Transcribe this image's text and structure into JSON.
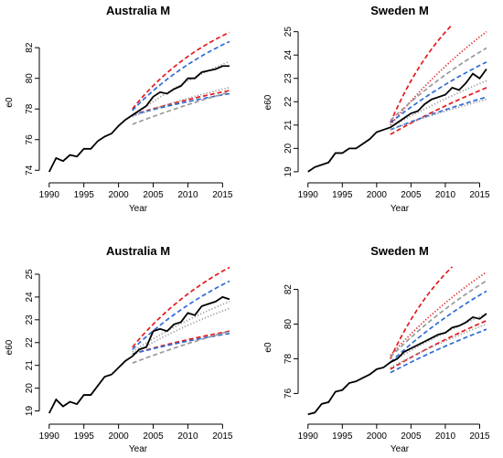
{
  "chart_data": [
    {
      "type": "line",
      "title": "Australia M",
      "xlabel": "Year",
      "ylabel": "e0",
      "xlim": [
        1989.5,
        2016.8
      ],
      "ylim": [
        73.6,
        83.5
      ],
      "xticks": [
        1990,
        1995,
        2000,
        2005,
        2010,
        2015
      ],
      "yticks": [
        74,
        76,
        78,
        80,
        82
      ],
      "observed": {
        "x": [
          1990,
          1991,
          1992,
          1993,
          1994,
          1995,
          1996,
          1997,
          1998,
          1999,
          2000,
          2001,
          2002,
          2003,
          2004,
          2005,
          2006,
          2007,
          2008,
          2009,
          2010,
          2011,
          2012,
          2013,
          2014,
          2015,
          2016
        ],
        "y": [
          73.9,
          74.8,
          74.6,
          75.0,
          74.9,
          75.4,
          75.4,
          75.9,
          76.2,
          76.4,
          76.9,
          77.3,
          77.6,
          77.9,
          78.2,
          78.8,
          79.1,
          79.0,
          79.3,
          79.5,
          80.0,
          80.0,
          80.4,
          80.5,
          80.6,
          80.8,
          80.8
        ]
      },
      "forecasts": [
        {
          "color": "#e41a1c",
          "style": "dashed",
          "x": [
            2002,
            2016
          ],
          "y": [
            78.0,
            83.0
          ],
          "curve": 0.6
        },
        {
          "color": "#e41a1c",
          "style": "dashed",
          "x": [
            2002,
            2016
          ],
          "y": [
            77.6,
            79.2
          ],
          "curve": 0.3
        },
        {
          "color": "#2e6bd6",
          "style": "dashed",
          "x": [
            2002,
            2016
          ],
          "y": [
            77.9,
            82.4
          ],
          "curve": 0.5
        },
        {
          "color": "#2e6bd6",
          "style": "dashed",
          "x": [
            2002,
            2016
          ],
          "y": [
            77.6,
            79.0
          ],
          "curve": 0.3
        },
        {
          "color": "#999999",
          "style": "dashed",
          "x": [
            2002,
            2016
          ],
          "y": [
            77.0,
            79.1
          ],
          "curve": 0.2
        },
        {
          "color": "#999999",
          "style": "dotted",
          "x": [
            2002,
            2016
          ],
          "y": [
            77.5,
            81.1
          ],
          "curve": 0.4
        },
        {
          "color": "#999999",
          "style": "dotted",
          "x": [
            2002,
            2016
          ],
          "y": [
            77.5,
            79.4
          ],
          "curve": 0.3
        }
      ]
    },
    {
      "type": "line",
      "title": "Sweden M",
      "xlabel": "Year",
      "ylabel": "e60",
      "xlim": [
        1989.5,
        2016.8
      ],
      "ylim": [
        18.8,
        25.3
      ],
      "xticks": [
        1990,
        1995,
        2000,
        2005,
        2010,
        2015
      ],
      "yticks": [
        19,
        20,
        21,
        22,
        23,
        24,
        25
      ],
      "observed": {
        "x": [
          1990,
          1991,
          1992,
          1993,
          1994,
          1995,
          1996,
          1997,
          1998,
          1999,
          2000,
          2001,
          2002,
          2003,
          2004,
          2005,
          2006,
          2007,
          2008,
          2009,
          2010,
          2011,
          2012,
          2013,
          2014,
          2015,
          2016
        ],
        "y": [
          19.0,
          19.2,
          19.3,
          19.4,
          19.8,
          19.8,
          20.0,
          20.0,
          20.2,
          20.4,
          20.7,
          20.8,
          20.9,
          21.1,
          21.3,
          21.5,
          21.6,
          21.9,
          22.1,
          22.2,
          22.3,
          22.6,
          22.5,
          22.8,
          23.2,
          23.0,
          23.4
        ]
      },
      "forecasts": [
        {
          "color": "#e41a1c",
          "style": "dashed",
          "x": [
            2002,
            2011
          ],
          "y": [
            21.1,
            25.3
          ],
          "curve": 0.5
        },
        {
          "color": "#e41a1c",
          "style": "dashed",
          "x": [
            2002,
            2016
          ],
          "y": [
            20.6,
            22.6
          ],
          "curve": 0.2
        },
        {
          "color": "#e41a1c",
          "style": "dotted",
          "x": [
            2002,
            2016
          ],
          "y": [
            21.0,
            25.0
          ],
          "curve": 0.3
        },
        {
          "color": "#2e6bd6",
          "style": "dashed",
          "x": [
            2002,
            2016
          ],
          "y": [
            21.1,
            23.7
          ],
          "curve": 0.3
        },
        {
          "color": "#2e6bd6",
          "style": "dashed",
          "x": [
            2002,
            2016
          ],
          "y": [
            20.8,
            22.2
          ],
          "curve": 0.2
        },
        {
          "color": "#999999",
          "style": "dashed",
          "x": [
            2002,
            2016
          ],
          "y": [
            21.2,
            24.3
          ],
          "curve": 0.3
        },
        {
          "color": "#999999",
          "style": "dotted",
          "x": [
            2002,
            2016
          ],
          "y": [
            20.9,
            22.9
          ],
          "curve": 0.2
        },
        {
          "color": "#999999",
          "style": "dotted",
          "x": [
            2002,
            2016
          ],
          "y": [
            20.8,
            22.1
          ],
          "curve": 0.2
        }
      ]
    },
    {
      "type": "line",
      "title": "Australia M",
      "xlabel": "Year",
      "ylabel": "e60",
      "xlim": [
        1989.5,
        2016.8
      ],
      "ylim": [
        18.7,
        25.4
      ],
      "xticks": [
        1990,
        1995,
        2000,
        2005,
        2010,
        2015
      ],
      "yticks": [
        19,
        20,
        21,
        22,
        23,
        24,
        25
      ],
      "observed": {
        "x": [
          1990,
          1991,
          1992,
          1993,
          1994,
          1995,
          1996,
          1997,
          1998,
          1999,
          2000,
          2001,
          2002,
          2003,
          2004,
          2005,
          2006,
          2007,
          2008,
          2009,
          2010,
          2011,
          2012,
          2013,
          2014,
          2015,
          2016
        ],
        "y": [
          18.9,
          19.5,
          19.2,
          19.4,
          19.3,
          19.7,
          19.7,
          20.1,
          20.5,
          20.6,
          20.9,
          21.2,
          21.4,
          21.7,
          21.8,
          22.5,
          22.6,
          22.5,
          22.8,
          22.9,
          23.3,
          23.2,
          23.6,
          23.7,
          23.8,
          24.0,
          23.9
        ]
      },
      "forecasts": [
        {
          "color": "#e41a1c",
          "style": "dashed",
          "x": [
            2002,
            2016
          ],
          "y": [
            21.8,
            25.3
          ],
          "curve": 0.5
        },
        {
          "color": "#e41a1c",
          "style": "dashed",
          "x": [
            2002,
            2016
          ],
          "y": [
            21.5,
            22.5
          ],
          "curve": 0.3
        },
        {
          "color": "#2e6bd6",
          "style": "dashed",
          "x": [
            2002,
            2016
          ],
          "y": [
            21.7,
            24.7
          ],
          "curve": 0.4
        },
        {
          "color": "#2e6bd6",
          "style": "dashed",
          "x": [
            2002,
            2016
          ],
          "y": [
            21.5,
            22.4
          ],
          "curve": 0.3
        },
        {
          "color": "#999999",
          "style": "dashed",
          "x": [
            2002,
            2016
          ],
          "y": [
            21.1,
            22.5
          ],
          "curve": 0.2
        },
        {
          "color": "#999999",
          "style": "dotted",
          "x": [
            2002,
            2016
          ],
          "y": [
            21.6,
            23.8
          ],
          "curve": 0.3
        },
        {
          "color": "#999999",
          "style": "dotted",
          "x": [
            2002,
            2016
          ],
          "y": [
            21.5,
            23.5
          ],
          "curve": 0.3
        }
      ]
    },
    {
      "type": "line",
      "title": "Sweden M",
      "xlabel": "Year",
      "ylabel": "e0",
      "xlim": [
        1989.5,
        2016.8
      ],
      "ylim": [
        74.6,
        83.4
      ],
      "xticks": [
        1990,
        1995,
        2000,
        2005,
        2010,
        2015
      ],
      "yticks": [
        76,
        78,
        80,
        82
      ],
      "observed": {
        "x": [
          1990,
          1991,
          1992,
          1993,
          1994,
          1995,
          1996,
          1997,
          1998,
          1999,
          2000,
          2001,
          2002,
          2003,
          2004,
          2005,
          2006,
          2007,
          2008,
          2009,
          2010,
          2011,
          2012,
          2013,
          2014,
          2015,
          2016
        ],
        "y": [
          74.8,
          74.9,
          75.4,
          75.5,
          76.1,
          76.2,
          76.6,
          76.7,
          76.9,
          77.1,
          77.4,
          77.5,
          77.8,
          78.0,
          78.4,
          78.6,
          78.8,
          79.0,
          79.2,
          79.4,
          79.5,
          79.8,
          79.9,
          80.1,
          80.4,
          80.3,
          80.6
        ]
      },
      "forecasts": [
        {
          "color": "#e41a1c",
          "style": "dashed",
          "x": [
            2002,
            2011
          ],
          "y": [
            78.0,
            83.3
          ],
          "curve": 0.5
        },
        {
          "color": "#e41a1c",
          "style": "dashed",
          "x": [
            2002,
            2016
          ],
          "y": [
            77.4,
            80.2
          ],
          "curve": 0.2
        },
        {
          "color": "#e41a1c",
          "style": "dotted",
          "x": [
            2002,
            2016
          ],
          "y": [
            78.2,
            83.0
          ],
          "curve": 0.3
        },
        {
          "color": "#2e6bd6",
          "style": "dashed",
          "x": [
            2002,
            2016
          ],
          "y": [
            77.8,
            81.9
          ],
          "curve": 0.3
        },
        {
          "color": "#2e6bd6",
          "style": "dashed",
          "x": [
            2002,
            2016
          ],
          "y": [
            77.2,
            79.7
          ],
          "curve": 0.2
        },
        {
          "color": "#999999",
          "style": "dashed",
          "x": [
            2002,
            2016
          ],
          "y": [
            78.1,
            82.5
          ],
          "curve": 0.3
        },
        {
          "color": "#999999",
          "style": "dotted",
          "x": [
            2002,
            2016
          ],
          "y": [
            77.8,
            80.6
          ],
          "curve": 0.2
        },
        {
          "color": "#999999",
          "style": "dotted",
          "x": [
            2002,
            2016
          ],
          "y": [
            77.5,
            80.0
          ],
          "curve": 0.2
        }
      ]
    }
  ]
}
